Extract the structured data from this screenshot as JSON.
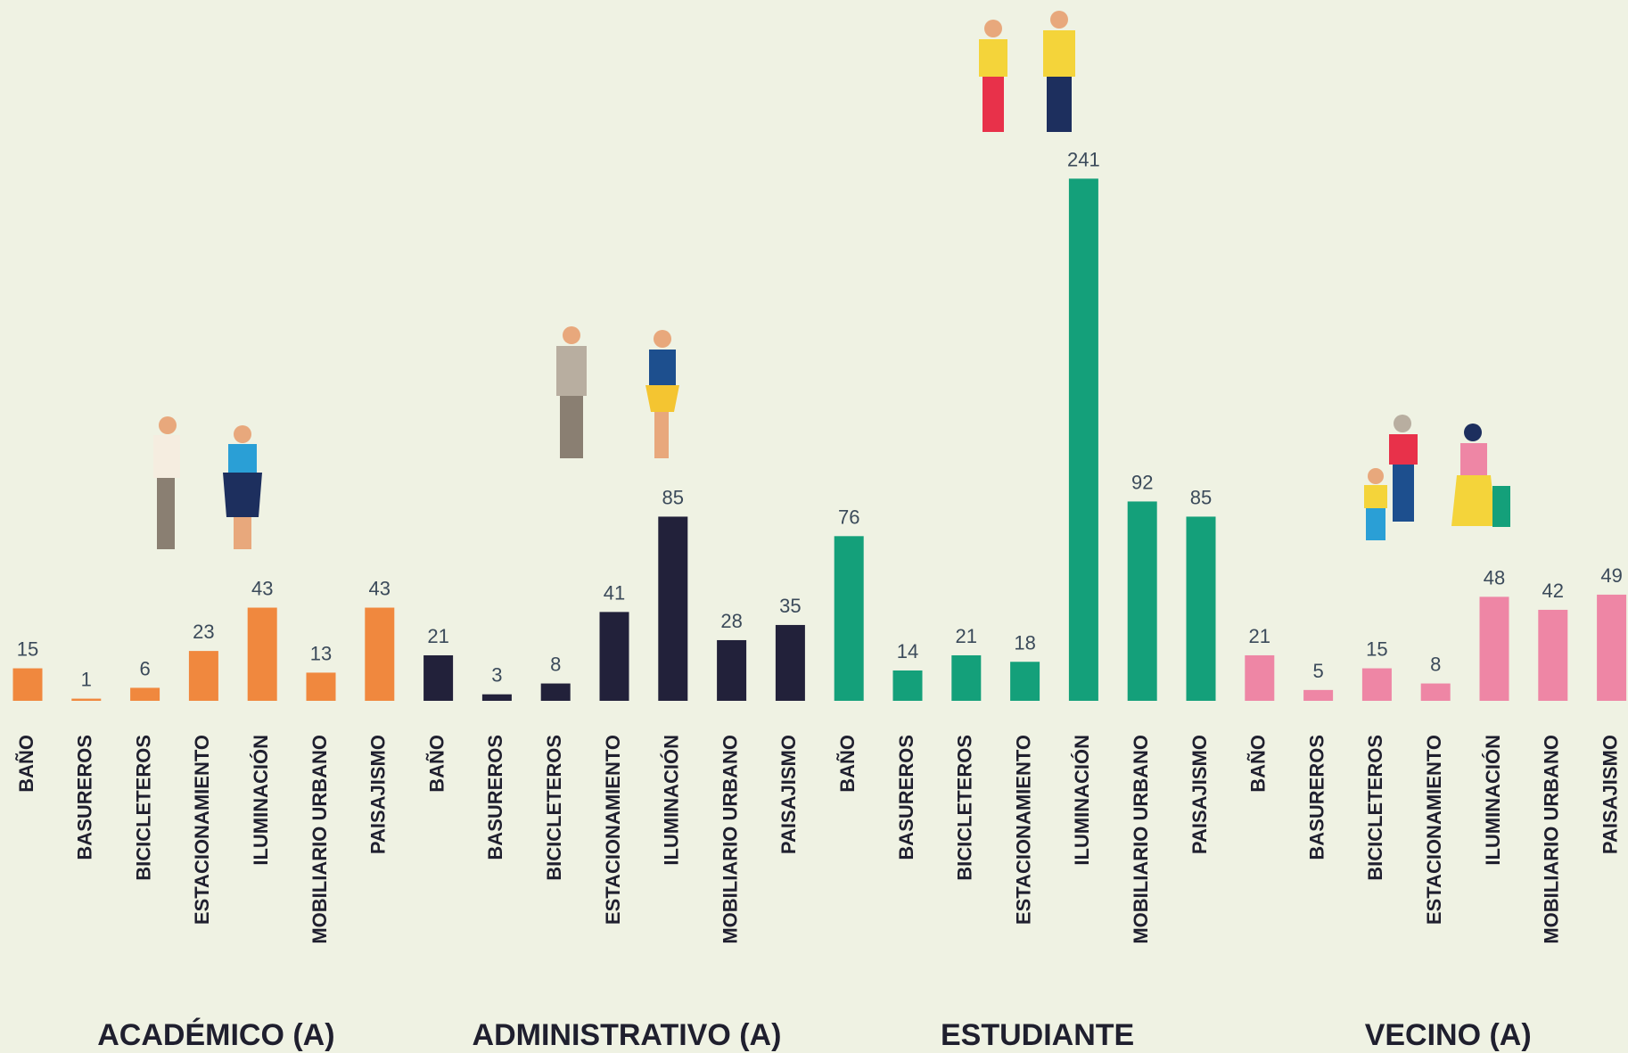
{
  "chart_data": {
    "type": "bar",
    "categories": [
      "BAÑO",
      "BASUREROS",
      "BICICLETEROS",
      "ESTACIONAMIENTO",
      "ILUMINACIÓN",
      "MOBILIARIO URBANO",
      "PAISAJISMO"
    ],
    "series": [
      {
        "name": "ACADÉMICO (A)",
        "color": "#f0883e",
        "values": [
          15,
          1,
          6,
          23,
          43,
          13,
          43
        ]
      },
      {
        "name": "ADMINISTRATIVO (A)",
        "color": "#22213a",
        "values": [
          21,
          3,
          8,
          41,
          85,
          28,
          35
        ]
      },
      {
        "name": "ESTUDIANTE",
        "color": "#14a07a",
        "values": [
          76,
          14,
          21,
          18,
          241,
          92,
          85
        ]
      },
      {
        "name": "VECINO (A)",
        "color": "#ee86a5",
        "values": [
          21,
          5,
          15,
          8,
          48,
          42,
          49
        ]
      }
    ]
  }
}
